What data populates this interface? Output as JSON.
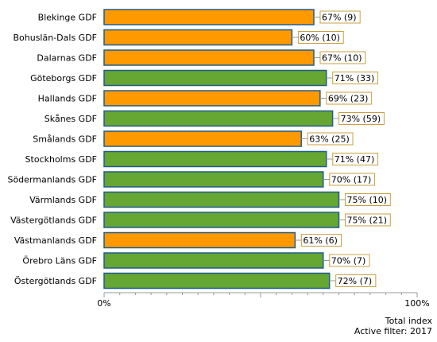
{
  "chart_data": {
    "type": "bar",
    "orientation": "horizontal",
    "categories": [
      "Blekinge GDF",
      "Bohuslän-Dals GDF",
      "Dalarnas GDF",
      "Göteborgs GDF",
      "Hallands GDF",
      "Skånes GDF",
      "Smålands GDF",
      "Stockholms GDF",
      "Södermanlands GDF",
      "Värmlands GDF",
      "Västergötlands GDF",
      "Västmanlands GDF",
      "Örebro Läns GDF",
      "Östergötlands GDF"
    ],
    "values": [
      67,
      60,
      67,
      71,
      69,
      73,
      63,
      71,
      70,
      75,
      75,
      61,
      70,
      72
    ],
    "data_labels": [
      "67% (9)",
      "60% (10)",
      "67% (10)",
      "71% (33)",
      "69% (23)",
      "73% (59)",
      "63% (25)",
      "71% (47)",
      "70% (17)",
      "75% (10)",
      "75% (21)",
      "61% (6)",
      "70% (7)",
      "72% (7)"
    ],
    "bar_status": [
      "orange",
      "orange",
      "orange",
      "green",
      "orange",
      "green",
      "orange",
      "green",
      "green",
      "green",
      "green",
      "orange",
      "green",
      "green"
    ],
    "colors": {
      "orange": "#FF9900",
      "green": "#66A632",
      "bar_border": "#1F5C8C",
      "label_border": "#C8A040"
    },
    "xlim": [
      0,
      100
    ],
    "x_tick_labels": [
      "0%",
      "100%"
    ],
    "xlabel": "Total index"
  },
  "footer": {
    "index_label": "Total index",
    "filter_label": "Active filter: 2017"
  }
}
